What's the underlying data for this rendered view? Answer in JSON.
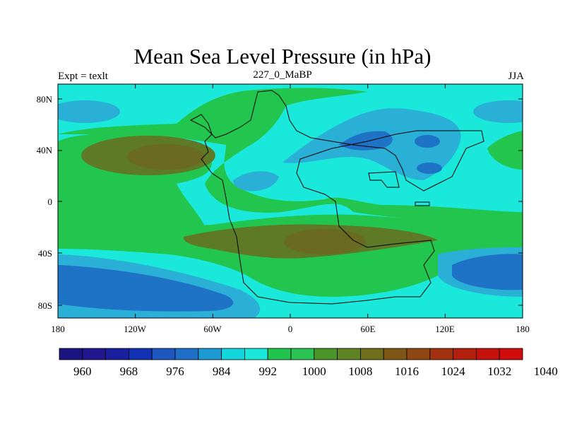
{
  "title": "Mean Sea Level Pressure (in hPa)",
  "left_label": "Expt = texlt",
  "center_label": "227_0_MaBP",
  "right_label": "JJA",
  "y_axis": [
    "80N",
    "40N",
    "0",
    "40S",
    "80S"
  ],
  "x_axis": [
    "180",
    "120W",
    "60W",
    "0",
    "60E",
    "120E",
    "180"
  ],
  "colorbar": {
    "labels": [
      "960",
      "968",
      "976",
      "984",
      "992",
      "1000",
      "1008",
      "1016",
      "1024",
      "1032",
      "1040"
    ],
    "colors": [
      "#1b137f",
      "#21168e",
      "#1a1fa0",
      "#1230b4",
      "#1e56c0",
      "#1f6fc6",
      "#1c9ad4",
      "#13d6dd",
      "#19e8da",
      "#21c54e",
      "#2bc353",
      "#4b9428",
      "#5f8323",
      "#6f6f1c",
      "#7e5716",
      "#8e4613",
      "#a2320f",
      "#b21f0d",
      "#c6120d",
      "#d00c0c"
    ]
  },
  "colors": {
    "background": "#19e8da",
    "green": "#22c64f",
    "brown": "#5e7a26",
    "dark_brown": "#6a6a22",
    "light_blue": "#2ab0d6",
    "blue": "#1f73c6"
  }
}
